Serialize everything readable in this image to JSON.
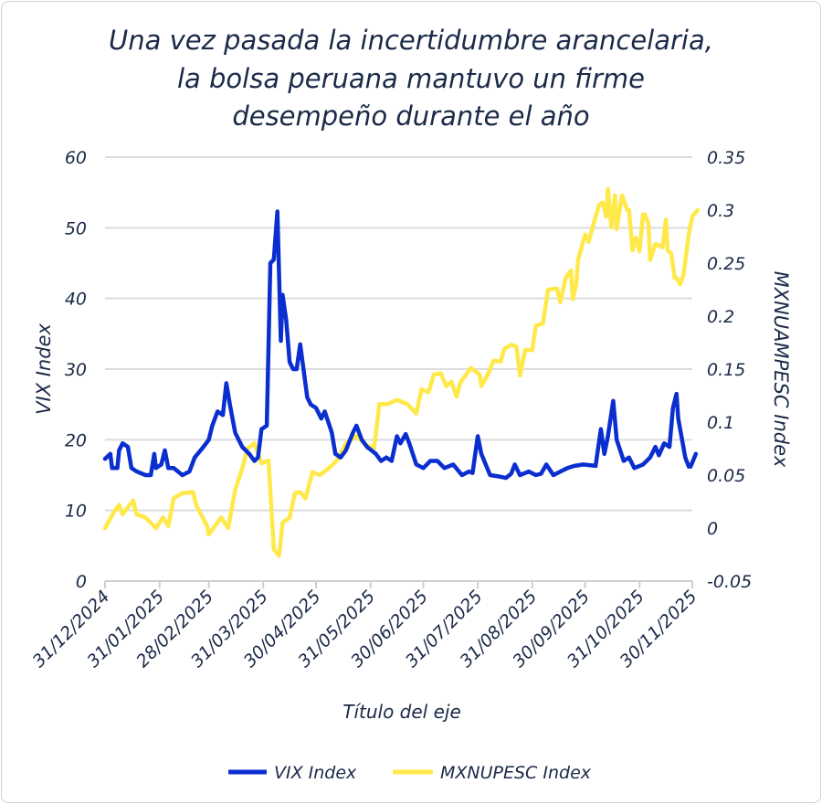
{
  "chart_data": {
    "type": "line",
    "title_lines": [
      "Una vez pasada la incertidumbre arancelaria,",
      "la bolsa peruana mantuvo un firme",
      "desempeño durante el año"
    ],
    "xlabel": "Título del eje",
    "ylabel_left": "VIX Index",
    "ylabel_right": "MXNUAMPESC Index",
    "ylim_left": [
      0,
      60
    ],
    "yticks_left": [
      "0",
      "10",
      "20",
      "30",
      "40",
      "50",
      "60"
    ],
    "ylim_right": [
      -0.05,
      0.35
    ],
    "yticks_right": [
      "-0.05",
      "0",
      "0.05",
      "0.1",
      "0.15",
      "0.2",
      "0.25",
      "0.3",
      "0.35"
    ],
    "xticks": [
      "31/12/2024",
      "31/01/2025",
      "28/02/2025",
      "31/03/2025",
      "30/04/2025",
      "31/05/2025",
      "30/06/2025",
      "31/07/2025",
      "31/08/2025",
      "30/09/2025",
      "31/10/2025",
      "30/11/2025"
    ],
    "grid": true,
    "legend_position": "bottom",
    "series": [
      {
        "name": "VIX Index",
        "axis": "left",
        "color": "#0a2ecf",
        "points": [
          [
            "2024-12-31",
            17.3
          ],
          [
            "2025-01-03",
            18
          ],
          [
            "2025-01-04",
            16
          ],
          [
            "2025-01-07",
            16
          ],
          [
            "2025-01-08",
            18.5
          ],
          [
            "2025-01-10",
            19.5
          ],
          [
            "2025-01-13",
            19
          ],
          [
            "2025-01-15",
            16
          ],
          [
            "2025-01-18",
            15.5
          ],
          [
            "2025-01-23",
            15
          ],
          [
            "2025-01-26",
            15
          ],
          [
            "2025-01-28",
            18
          ],
          [
            "2025-01-29",
            16
          ],
          [
            "2025-02-01",
            16.5
          ],
          [
            "2025-02-03",
            18.5
          ],
          [
            "2025-02-05",
            16
          ],
          [
            "2025-02-08",
            16
          ],
          [
            "2025-02-13",
            15
          ],
          [
            "2025-02-17",
            15.5
          ],
          [
            "2025-02-20",
            17.5
          ],
          [
            "2025-02-25",
            19
          ],
          [
            "2025-02-28",
            20
          ],
          [
            "2025-03-02",
            22
          ],
          [
            "2025-03-05",
            24
          ],
          [
            "2025-03-08",
            23.5
          ],
          [
            "2025-03-10",
            28
          ],
          [
            "2025-03-12",
            25
          ],
          [
            "2025-03-15",
            21
          ],
          [
            "2025-03-19",
            19
          ],
          [
            "2025-03-23",
            18
          ],
          [
            "2025-03-26",
            17
          ],
          [
            "2025-03-28",
            17.5
          ],
          [
            "2025-03-30",
            21.5
          ],
          [
            "2025-04-02",
            22
          ],
          [
            "2025-04-04",
            45
          ],
          [
            "2025-04-06",
            45.5
          ],
          [
            "2025-04-08",
            52.3
          ],
          [
            "2025-04-10",
            34
          ],
          [
            "2025-04-11",
            40.5
          ],
          [
            "2025-04-13",
            37
          ],
          [
            "2025-04-15",
            31
          ],
          [
            "2025-04-17",
            30
          ],
          [
            "2025-04-19",
            30
          ],
          [
            "2025-04-21",
            33.5
          ],
          [
            "2025-04-25",
            26
          ],
          [
            "2025-04-27",
            25
          ],
          [
            "2025-04-30",
            24.5
          ],
          [
            "2025-05-03",
            23
          ],
          [
            "2025-05-05",
            24
          ],
          [
            "2025-05-09",
            21
          ],
          [
            "2025-05-11",
            18
          ],
          [
            "2025-05-14",
            17.5
          ],
          [
            "2025-05-17",
            18.5
          ],
          [
            "2025-05-21",
            21
          ],
          [
            "2025-05-23",
            22
          ],
          [
            "2025-05-26",
            20
          ],
          [
            "2025-05-29",
            19
          ],
          [
            "2025-06-03",
            18
          ],
          [
            "2025-06-06",
            17
          ],
          [
            "2025-06-09",
            17.5
          ],
          [
            "2025-06-12",
            17
          ],
          [
            "2025-06-15",
            20.5
          ],
          [
            "2025-06-17",
            19.5
          ],
          [
            "2025-06-20",
            20.8
          ],
          [
            "2025-06-22",
            19.5
          ],
          [
            "2025-06-26",
            16.5
          ],
          [
            "2025-06-30",
            16
          ],
          [
            "2025-07-04",
            17
          ],
          [
            "2025-07-08",
            17
          ],
          [
            "2025-07-12",
            16
          ],
          [
            "2025-07-17",
            16.5
          ],
          [
            "2025-07-22",
            15
          ],
          [
            "2025-07-26",
            15.5
          ],
          [
            "2025-07-28",
            15.3
          ],
          [
            "2025-07-31",
            20.5
          ],
          [
            "2025-08-02",
            18
          ],
          [
            "2025-08-07",
            15
          ],
          [
            "2025-08-12",
            14.8
          ],
          [
            "2025-08-16",
            14.6
          ],
          [
            "2025-08-19",
            15.2
          ],
          [
            "2025-08-21",
            16.5
          ],
          [
            "2025-08-24",
            15
          ],
          [
            "2025-08-29",
            15.5
          ],
          [
            "2025-09-02",
            15
          ],
          [
            "2025-09-05",
            15.2
          ],
          [
            "2025-09-08",
            16.5
          ],
          [
            "2025-09-12",
            15
          ],
          [
            "2025-09-16",
            15.5
          ],
          [
            "2025-09-20",
            16
          ],
          [
            "2025-09-24",
            16.3
          ],
          [
            "2025-09-29",
            16.5
          ],
          [
            "2025-10-06",
            16.3
          ],
          [
            "2025-10-09",
            21.5
          ],
          [
            "2025-10-11",
            18
          ],
          [
            "2025-10-13",
            20.5
          ],
          [
            "2025-10-16",
            25.5
          ],
          [
            "2025-10-18",
            20
          ],
          [
            "2025-10-22",
            17
          ],
          [
            "2025-10-25",
            17.5
          ],
          [
            "2025-10-28",
            16
          ],
          [
            "2025-11-02",
            16.5
          ],
          [
            "2025-11-06",
            17.5
          ],
          [
            "2025-11-09",
            19
          ],
          [
            "2025-11-11",
            17.8
          ],
          [
            "2025-11-14",
            19.5
          ],
          [
            "2025-11-17",
            19
          ],
          [
            "2025-11-19",
            24.5
          ],
          [
            "2025-11-21",
            26.5
          ],
          [
            "2025-11-22",
            23
          ],
          [
            "2025-11-26",
            17.5
          ],
          [
            "2025-11-28",
            16.2
          ],
          [
            "2025-11-29",
            16.2
          ],
          [
            "2025-12-02",
            18
          ]
        ]
      },
      {
        "name": "MXNUPESC Index",
        "axis": "right",
        "color": "#ffe94a",
        "points": [
          [
            "2024-12-31",
            0
          ],
          [
            "2025-01-05",
            0.015
          ],
          [
            "2025-01-08",
            0.022
          ],
          [
            "2025-01-10",
            0.013
          ],
          [
            "2025-01-16",
            0.026
          ],
          [
            "2025-01-18",
            0.013
          ],
          [
            "2025-01-23",
            0.01
          ],
          [
            "2025-01-29",
            0.0
          ],
          [
            "2025-02-02",
            0.01
          ],
          [
            "2025-02-05",
            0.002
          ],
          [
            "2025-02-08",
            0.028
          ],
          [
            "2025-02-13",
            0.033
          ],
          [
            "2025-02-19",
            0.034
          ],
          [
            "2025-02-21",
            0.021
          ],
          [
            "2025-02-27",
            0.002
          ],
          [
            "2025-02-28",
            -0.006
          ],
          [
            "2025-03-07",
            0.01
          ],
          [
            "2025-03-11",
            0.0
          ],
          [
            "2025-03-15",
            0.036
          ],
          [
            "2025-03-19",
            0.056
          ],
          [
            "2025-03-22",
            0.075
          ],
          [
            "2025-03-26",
            0.08
          ],
          [
            "2025-03-30",
            0.061
          ],
          [
            "2025-04-03",
            0.064
          ],
          [
            "2025-04-06",
            -0.02
          ],
          [
            "2025-04-09",
            -0.026
          ],
          [
            "2025-04-11",
            0.005
          ],
          [
            "2025-04-15",
            0.01
          ],
          [
            "2025-04-18",
            0.033
          ],
          [
            "2025-04-21",
            0.034
          ],
          [
            "2025-04-24",
            0.028
          ],
          [
            "2025-04-28",
            0.053
          ],
          [
            "2025-05-02",
            0.05
          ],
          [
            "2025-05-07",
            0.056
          ],
          [
            "2025-05-12",
            0.064
          ],
          [
            "2025-05-17",
            0.08
          ],
          [
            "2025-05-23",
            0.087
          ],
          [
            "2025-05-28",
            0.079
          ],
          [
            "2025-06-02",
            0.075
          ],
          [
            "2025-06-05",
            0.117
          ],
          [
            "2025-06-10",
            0.117
          ],
          [
            "2025-06-15",
            0.121
          ],
          [
            "2025-06-21",
            0.117
          ],
          [
            "2025-06-26",
            0.108
          ],
          [
            "2025-06-29",
            0.131
          ],
          [
            "2025-07-03",
            0.128
          ],
          [
            "2025-07-06",
            0.145
          ],
          [
            "2025-07-10",
            0.146
          ],
          [
            "2025-07-13",
            0.134
          ],
          [
            "2025-07-16",
            0.138
          ],
          [
            "2025-07-19",
            0.124
          ],
          [
            "2025-07-21",
            0.137
          ],
          [
            "2025-07-27",
            0.151
          ],
          [
            "2025-08-01",
            0.145
          ],
          [
            "2025-08-02",
            0.134
          ],
          [
            "2025-08-06",
            0.146
          ],
          [
            "2025-08-09",
            0.158
          ],
          [
            "2025-08-13",
            0.157
          ],
          [
            "2025-08-15",
            0.169
          ],
          [
            "2025-08-19",
            0.173
          ],
          [
            "2025-08-22",
            0.171
          ],
          [
            "2025-08-24",
            0.144
          ],
          [
            "2025-08-27",
            0.168
          ],
          [
            "2025-08-31",
            0.168
          ],
          [
            "2025-09-02",
            0.191
          ],
          [
            "2025-09-06",
            0.193
          ],
          [
            "2025-09-09",
            0.225
          ],
          [
            "2025-09-14",
            0.226
          ],
          [
            "2025-09-16",
            0.213
          ],
          [
            "2025-09-19",
            0.236
          ],
          [
            "2025-09-22",
            0.243
          ],
          [
            "2025-09-23",
            0.216
          ],
          [
            "2025-09-25",
            0.23
          ],
          [
            "2025-09-26",
            0.253
          ],
          [
            "2025-09-30",
            0.277
          ],
          [
            "2025-10-02",
            0.27
          ],
          [
            "2025-10-05",
            0.288
          ],
          [
            "2025-10-08",
            0.305
          ],
          [
            "2025-10-10",
            0.307
          ],
          [
            "2025-10-12",
            0.294
          ],
          [
            "2025-10-13",
            0.32
          ],
          [
            "2025-10-15",
            0.284
          ],
          [
            "2025-10-17",
            0.314
          ],
          [
            "2025-10-18",
            0.282
          ],
          [
            "2025-10-21",
            0.314
          ],
          [
            "2025-10-24",
            0.3
          ],
          [
            "2025-10-25",
            0.3
          ],
          [
            "2025-10-27",
            0.262
          ],
          [
            "2025-10-29",
            0.274
          ],
          [
            "2025-10-31",
            0.261
          ],
          [
            "2025-11-02",
            0.296
          ],
          [
            "2025-11-03",
            0.296
          ],
          [
            "2025-11-05",
            0.288
          ],
          [
            "2025-11-06",
            0.253
          ],
          [
            "2025-11-09",
            0.268
          ],
          [
            "2025-11-13",
            0.265
          ],
          [
            "2025-11-15",
            0.291
          ],
          [
            "2025-11-16",
            0.262
          ],
          [
            "2025-11-18",
            0.259
          ],
          [
            "2025-11-20",
            0.236
          ],
          [
            "2025-11-21",
            0.236
          ],
          [
            "2025-11-23",
            0.23
          ],
          [
            "2025-11-25",
            0.239
          ],
          [
            "2025-11-28",
            0.277
          ],
          [
            "2025-11-30",
            0.294
          ],
          [
            "2025-12-03",
            0.3
          ]
        ]
      }
    ]
  }
}
